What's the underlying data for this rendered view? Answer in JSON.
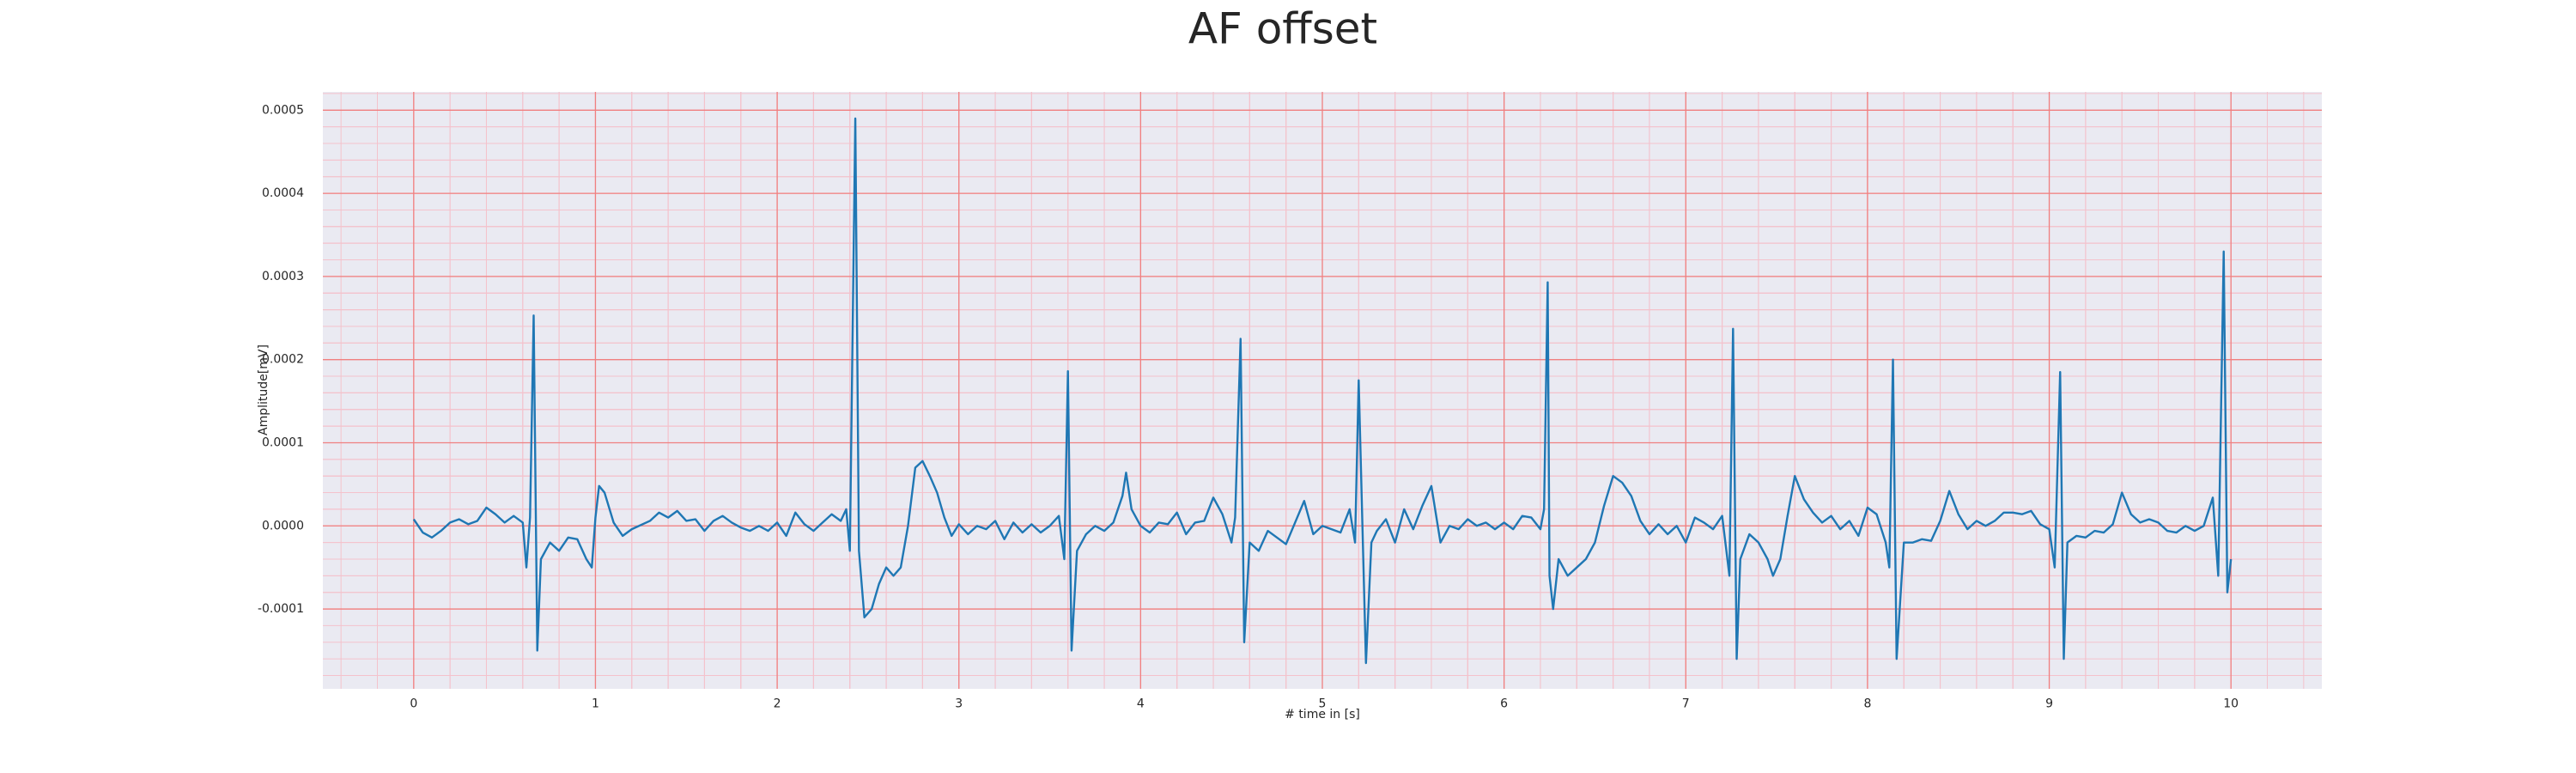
{
  "chart_data": {
    "type": "line",
    "title": "AF offset",
    "xlabel": "# time in [s]",
    "ylabel": "Amplitude[mV]",
    "xlim": [
      -0.5,
      10.5
    ],
    "ylim": [
      -0.000196,
      0.000522
    ],
    "xticks": [
      0,
      1,
      2,
      3,
      4,
      5,
      6,
      7,
      8,
      9,
      10
    ],
    "yticks": [
      -0.0001,
      {
        "value": 0,
        "label": "0.0000"
      },
      0.0001,
      0.0002,
      0.0003,
      0.0004,
      0.0005
    ],
    "grid": true,
    "minor_grid": true,
    "background": "#eaeaf2",
    "grid_color": "#f08080",
    "minor_grid_color": "#f4c2cc",
    "x": [
      0.0,
      0.05,
      0.1,
      0.15,
      0.2,
      0.25,
      0.3,
      0.35,
      0.4,
      0.45,
      0.5,
      0.55,
      0.6,
      0.62,
      0.64,
      0.66,
      0.68,
      0.7,
      0.75,
      0.8,
      0.85,
      0.9,
      0.95,
      0.98,
      1.0,
      1.02,
      1.05,
      1.1,
      1.15,
      1.2,
      1.3,
      1.35,
      1.4,
      1.45,
      1.5,
      1.55,
      1.6,
      1.65,
      1.7,
      1.75,
      1.8,
      1.85,
      1.9,
      1.95,
      2.0,
      2.05,
      2.1,
      2.15,
      2.2,
      2.25,
      2.3,
      2.35,
      2.38,
      2.4,
      2.43,
      2.45,
      2.48,
      2.52,
      2.56,
      2.6,
      2.64,
      2.68,
      2.72,
      2.76,
      2.8,
      2.84,
      2.88,
      2.92,
      2.96,
      3.0,
      3.05,
      3.1,
      3.15,
      3.2,
      3.25,
      3.3,
      3.35,
      3.4,
      3.45,
      3.5,
      3.55,
      3.58,
      3.6,
      3.62,
      3.65,
      3.7,
      3.75,
      3.8,
      3.85,
      3.9,
      3.92,
      3.95,
      4.0,
      4.05,
      4.1,
      4.15,
      4.2,
      4.25,
      4.3,
      4.35,
      4.4,
      4.45,
      4.5,
      4.52,
      4.55,
      4.57,
      4.6,
      4.65,
      4.7,
      4.75,
      4.8,
      4.85,
      4.9,
      4.95,
      5.0,
      5.05,
      5.1,
      5.15,
      5.18,
      5.2,
      5.24,
      5.27,
      5.3,
      5.35,
      5.4,
      5.45,
      5.5,
      5.55,
      5.6,
      5.65,
      5.7,
      5.75,
      5.8,
      5.85,
      5.9,
      5.95,
      6.0,
      6.05,
      6.1,
      6.15,
      6.2,
      6.22,
      6.24,
      6.25,
      6.27,
      6.3,
      6.35,
      6.4,
      6.45,
      6.5,
      6.55,
      6.6,
      6.65,
      6.7,
      6.75,
      6.8,
      6.85,
      6.9,
      6.95,
      7.0,
      7.05,
      7.1,
      7.15,
      7.2,
      7.24,
      7.26,
      7.28,
      7.3,
      7.35,
      7.4,
      7.45,
      7.48,
      7.52,
      7.56,
      7.6,
      7.65,
      7.7,
      7.75,
      7.8,
      7.85,
      7.9,
      7.95,
      8.0,
      8.05,
      8.1,
      8.12,
      8.14,
      8.16,
      8.2,
      8.25,
      8.3,
      8.35,
      8.4,
      8.45,
      8.5,
      8.55,
      8.6,
      8.65,
      8.7,
      8.75,
      8.8,
      8.85,
      8.9,
      8.95,
      9.0,
      9.03,
      9.06,
      9.08,
      9.1,
      9.15,
      9.2,
      9.25,
      9.3,
      9.35,
      9.4,
      9.45,
      9.5,
      9.55,
      9.6,
      9.65,
      9.7,
      9.75,
      9.8,
      9.85,
      9.9,
      9.93,
      9.96,
      9.98,
      10.0
    ],
    "series": [
      {
        "color": "#1f77b4",
        "values": [
          8e-06,
          -8e-06,
          -1.4e-05,
          -6e-06,
          4e-06,
          8e-06,
          2e-06,
          6e-06,
          2.2e-05,
          1.4e-05,
          4e-06,
          1.2e-05,
          4e-06,
          -5e-05,
          1e-05,
          0.000253,
          -0.00015,
          -4e-05,
          -2e-05,
          -3e-05,
          -1.4e-05,
          -1.6e-05,
          -4e-05,
          -5e-05,
          1e-05,
          4.8e-05,
          4e-05,
          4e-06,
          -1.2e-05,
          -4e-06,
          6e-06,
          1.6e-05,
          1e-05,
          1.8e-05,
          6e-06,
          8e-06,
          -6e-06,
          6e-06,
          1.2e-05,
          4e-06,
          -2e-06,
          -6e-06,
          0.0,
          -6e-06,
          4e-06,
          -1.2e-05,
          1.6e-05,
          2e-06,
          -6e-06,
          4e-06,
          1.4e-05,
          6e-06,
          2e-05,
          -3e-05,
          0.00049,
          -3e-05,
          -0.00011,
          -0.0001,
          -7e-05,
          -5e-05,
          -6e-05,
          -5e-05,
          0.0,
          7e-05,
          7.8e-05,
          6e-05,
          4e-05,
          1e-05,
          -1.2e-05,
          2e-06,
          -1e-05,
          0.0,
          -4e-06,
          6e-06,
          -1.6e-05,
          4e-06,
          -8e-06,
          2e-06,
          -8e-06,
          0.0,
          1.2e-05,
          -4e-05,
          0.000186,
          -0.00015,
          -3e-05,
          -1e-05,
          0.0,
          -6e-06,
          4e-06,
          3.6e-05,
          6.4e-05,
          2e-05,
          0.0,
          -8e-06,
          4e-06,
          2e-06,
          1.6e-05,
          -1e-05,
          4e-06,
          6e-06,
          3.4e-05,
          1.4e-05,
          -2e-05,
          1e-05,
          0.000225,
          -0.00014,
          -2e-05,
          -3e-05,
          -6e-06,
          -1.4e-05,
          -2.2e-05,
          4e-06,
          3e-05,
          -1e-05,
          0.0,
          -4e-06,
          -8e-06,
          2e-05,
          -2e-05,
          0.000175,
          -0.000165,
          -2e-05,
          -6e-06,
          8e-06,
          -2e-05,
          2e-05,
          -4e-06,
          2.4e-05,
          4.8e-05,
          -2e-05,
          0.0,
          -4e-06,
          8e-06,
          0.0,
          4e-06,
          -4e-06,
          4e-06,
          -4e-06,
          1.2e-05,
          1e-05,
          -4e-06,
          2e-05,
          0.000293,
          -6e-05,
          -0.0001,
          -4e-05,
          -6e-05,
          -5e-05,
          -4e-05,
          -2e-05,
          2.4e-05,
          6e-05,
          5.2e-05,
          3.6e-05,
          6e-06,
          -1e-05,
          2e-06,
          -1e-05,
          0.0,
          -2e-05,
          1e-05,
          4e-06,
          -4e-06,
          1.2e-05,
          -6e-05,
          0.000237,
          -0.00016,
          -4e-05,
          -1e-05,
          -2e-05,
          -4e-05,
          -6e-05,
          -4e-05,
          1.2e-05,
          6e-05,
          3.2e-05,
          1.6e-05,
          4e-06,
          1.2e-05,
          -4e-06,
          6e-06,
          -1.2e-05,
          2.2e-05,
          1.4e-05,
          -2e-05,
          -5e-05,
          0.0002,
          -0.00016,
          -2e-05,
          -2e-05,
          -1.6e-05,
          -1.8e-05,
          6e-06,
          4.2e-05,
          1.4e-05,
          -4e-06,
          6e-06,
          0.0,
          6e-06,
          1.6e-05,
          1.6e-05,
          1.4e-05,
          1.8e-05,
          2e-06,
          -4e-06,
          -5e-05,
          0.000185,
          -0.00016,
          -2e-05,
          -1.2e-05,
          -1.4e-05,
          -6e-06,
          -8e-06,
          2e-06,
          4e-05,
          1.4e-05,
          4e-06,
          8e-06,
          4e-06,
          -6e-06,
          -8e-06,
          0.0,
          -6e-06,
          0.0,
          3.4e-05,
          -6e-05,
          0.00033,
          -8e-05,
          -4e-05
        ]
      }
    ]
  }
}
